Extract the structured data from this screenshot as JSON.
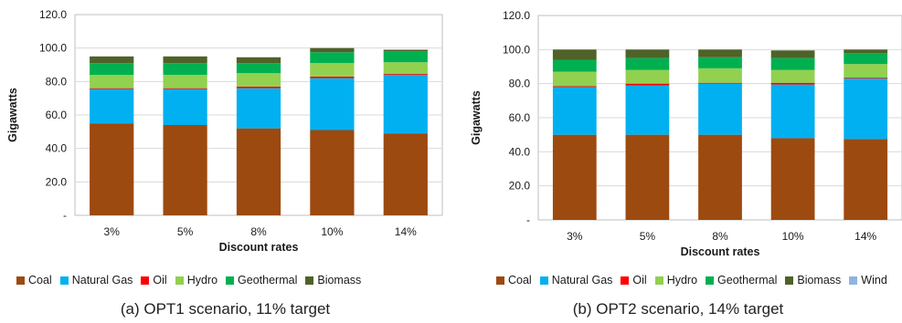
{
  "colors": {
    "Coal": "#9c4a10",
    "Natural Gas": "#00b0f0",
    "Oil": "#ff0000",
    "Hydro": "#92d050",
    "Geothermal": "#00b050",
    "Biomass": "#4f6228",
    "Wind": "#8eb4e3"
  },
  "chart_data": [
    {
      "type": "bar",
      "stacked": true,
      "caption": "(a) OPT1 scenario, 11% target",
      "xlabel": "Discount rates",
      "ylabel": "Gigawatts",
      "ylim": [
        0,
        120
      ],
      "yticks": [
        "-",
        "20.0",
        "40.0",
        "60.0",
        "80.0",
        "100.0",
        "120.0"
      ],
      "categories": [
        "3%",
        "5%",
        "8%",
        "10%",
        "14%"
      ],
      "legend": "bottom",
      "grid": true,
      "series": [
        {
          "name": "Coal",
          "values": [
            55,
            54,
            52,
            51,
            49
          ]
        },
        {
          "name": "Natural Gas",
          "values": [
            20.5,
            21.5,
            24,
            31,
            35
          ]
        },
        {
          "name": "Oil",
          "values": [
            0.5,
            0.5,
            1,
            1,
            0.5
          ]
        },
        {
          "name": "Hydro",
          "values": [
            8,
            8,
            8,
            8,
            7
          ]
        },
        {
          "name": "Geothermal",
          "values": [
            7,
            7,
            6,
            6.5,
            6.5
          ]
        },
        {
          "name": "Biomass",
          "values": [
            4,
            4,
            3.5,
            2.5,
            1
          ]
        }
      ]
    },
    {
      "type": "bar",
      "stacked": true,
      "caption": "(b) OPT2 scenario, 14% target",
      "xlabel": "Discount rates",
      "ylabel": "Gigawatts",
      "ylim": [
        0,
        120
      ],
      "yticks": [
        "-",
        "20.0",
        "40.0",
        "60.0",
        "80.0",
        "100.0",
        "120.0"
      ],
      "categories": [
        "3%",
        "5%",
        "8%",
        "10%",
        "14%"
      ],
      "legend": "bottom",
      "grid": true,
      "series": [
        {
          "name": "Coal",
          "values": [
            50,
            50,
            50,
            48,
            47.5
          ]
        },
        {
          "name": "Natural Gas",
          "values": [
            28,
            29,
            30,
            31.5,
            35.5
          ]
        },
        {
          "name": "Oil",
          "values": [
            0.5,
            1,
            0.5,
            1,
            0.5
          ]
        },
        {
          "name": "Hydro",
          "values": [
            8.5,
            8,
            8.5,
            7.5,
            8
          ]
        },
        {
          "name": "Geothermal",
          "values": [
            7,
            7,
            6.5,
            7,
            6.5
          ]
        },
        {
          "name": "Biomass",
          "values": [
            6,
            5,
            4.5,
            4.5,
            2
          ]
        },
        {
          "name": "Wind",
          "values": [
            0,
            0,
            0,
            0,
            0
          ]
        }
      ]
    }
  ]
}
